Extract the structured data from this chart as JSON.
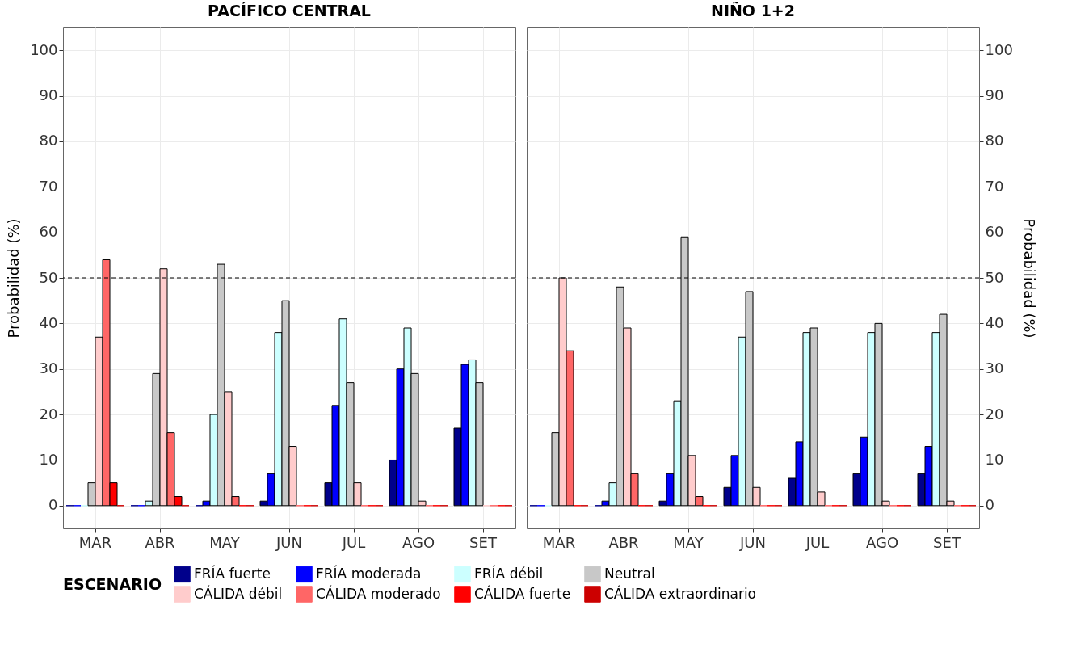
{
  "chart_data": [
    {
      "type": "bar",
      "title": "PACÍFICO CENTRAL",
      "ylabel": "Probabilidad (%)",
      "legend_title": "ESCENARIO",
      "legend": "bottom",
      "grid": true,
      "categories": [
        "MAR",
        "ABR",
        "MAY",
        "JUN",
        "JUL",
        "AGO",
        "SET"
      ],
      "ylim": [
        -5,
        105
      ],
      "yticks": [
        0,
        10,
        20,
        30,
        40,
        50,
        60,
        70,
        80,
        90,
        100
      ],
      "ref_lines": [
        {
          "axis": "y",
          "value": 50,
          "line_style": "dashed",
          "color": "#000000"
        }
      ],
      "series": [
        {
          "name": "FRÍA fuerte",
          "color": "#00008b",
          "values": [
            0,
            0,
            0,
            1,
            5,
            10,
            17
          ]
        },
        {
          "name": "FRÍA moderada",
          "color": "#0000ff",
          "values": [
            0,
            0,
            1,
            7,
            22,
            30,
            31
          ]
        },
        {
          "name": "FRÍA débil",
          "color": "#ccffff",
          "values": [
            0,
            1,
            20,
            38,
            41,
            39,
            32
          ]
        },
        {
          "name": "Neutral",
          "color": "#c8c8c8",
          "values": [
            5,
            29,
            53,
            45,
            27,
            29,
            27
          ]
        },
        {
          "name": "CÁLIDA débil",
          "color": "#ffcccc",
          "values": [
            37,
            52,
            25,
            13,
            5,
            1,
            0
          ]
        },
        {
          "name": "CÁLIDA moderado",
          "color": "#ff6666",
          "values": [
            54,
            16,
            2,
            0,
            0,
            0,
            0
          ]
        },
        {
          "name": "CÁLIDA fuerte",
          "color": "#ff0000",
          "values": [
            5,
            2,
            0,
            0,
            0,
            0,
            0
          ]
        },
        {
          "name": "CÁLIDA extraordinario",
          "color": "#cc0000",
          "values": [
            0,
            0,
            0,
            0,
            0,
            0,
            0
          ]
        }
      ]
    },
    {
      "type": "bar",
      "title": "NIÑO 1+2",
      "ylabel": "Probabilidad (%)",
      "grid": true,
      "categories": [
        "MAR",
        "ABR",
        "MAY",
        "JUN",
        "JUL",
        "AGO",
        "SET"
      ],
      "ylim": [
        -5,
        105
      ],
      "yticks": [
        0,
        10,
        20,
        30,
        40,
        50,
        60,
        70,
        80,
        90,
        100
      ],
      "ref_lines": [
        {
          "axis": "y",
          "value": 50,
          "line_style": "dashed",
          "color": "#000000"
        }
      ],
      "series": [
        {
          "name": "FRÍA fuerte",
          "color": "#00008b",
          "values": [
            0,
            0,
            1,
            4,
            6,
            7,
            7
          ]
        },
        {
          "name": "FRÍA moderada",
          "color": "#0000ff",
          "values": [
            0,
            1,
            7,
            11,
            14,
            15,
            13
          ]
        },
        {
          "name": "FRÍA débil",
          "color": "#ccffff",
          "values": [
            0,
            5,
            23,
            37,
            38,
            38,
            38
          ]
        },
        {
          "name": "Neutral",
          "color": "#c8c8c8",
          "values": [
            16,
            48,
            59,
            47,
            39,
            40,
            42
          ]
        },
        {
          "name": "CÁLIDA débil",
          "color": "#ffcccc",
          "values": [
            50,
            39,
            11,
            4,
            3,
            1,
            1
          ]
        },
        {
          "name": "CÁLIDA moderado",
          "color": "#ff6666",
          "values": [
            34,
            7,
            2,
            0,
            0,
            0,
            0
          ]
        },
        {
          "name": "CÁLIDA fuerte",
          "color": "#ff0000",
          "values": [
            0,
            0,
            0,
            0,
            0,
            0,
            0
          ]
        },
        {
          "name": "CÁLIDA extraordinario",
          "color": "#cc0000",
          "values": [
            0,
            0,
            0,
            0,
            0,
            0,
            0
          ]
        }
      ]
    }
  ]
}
